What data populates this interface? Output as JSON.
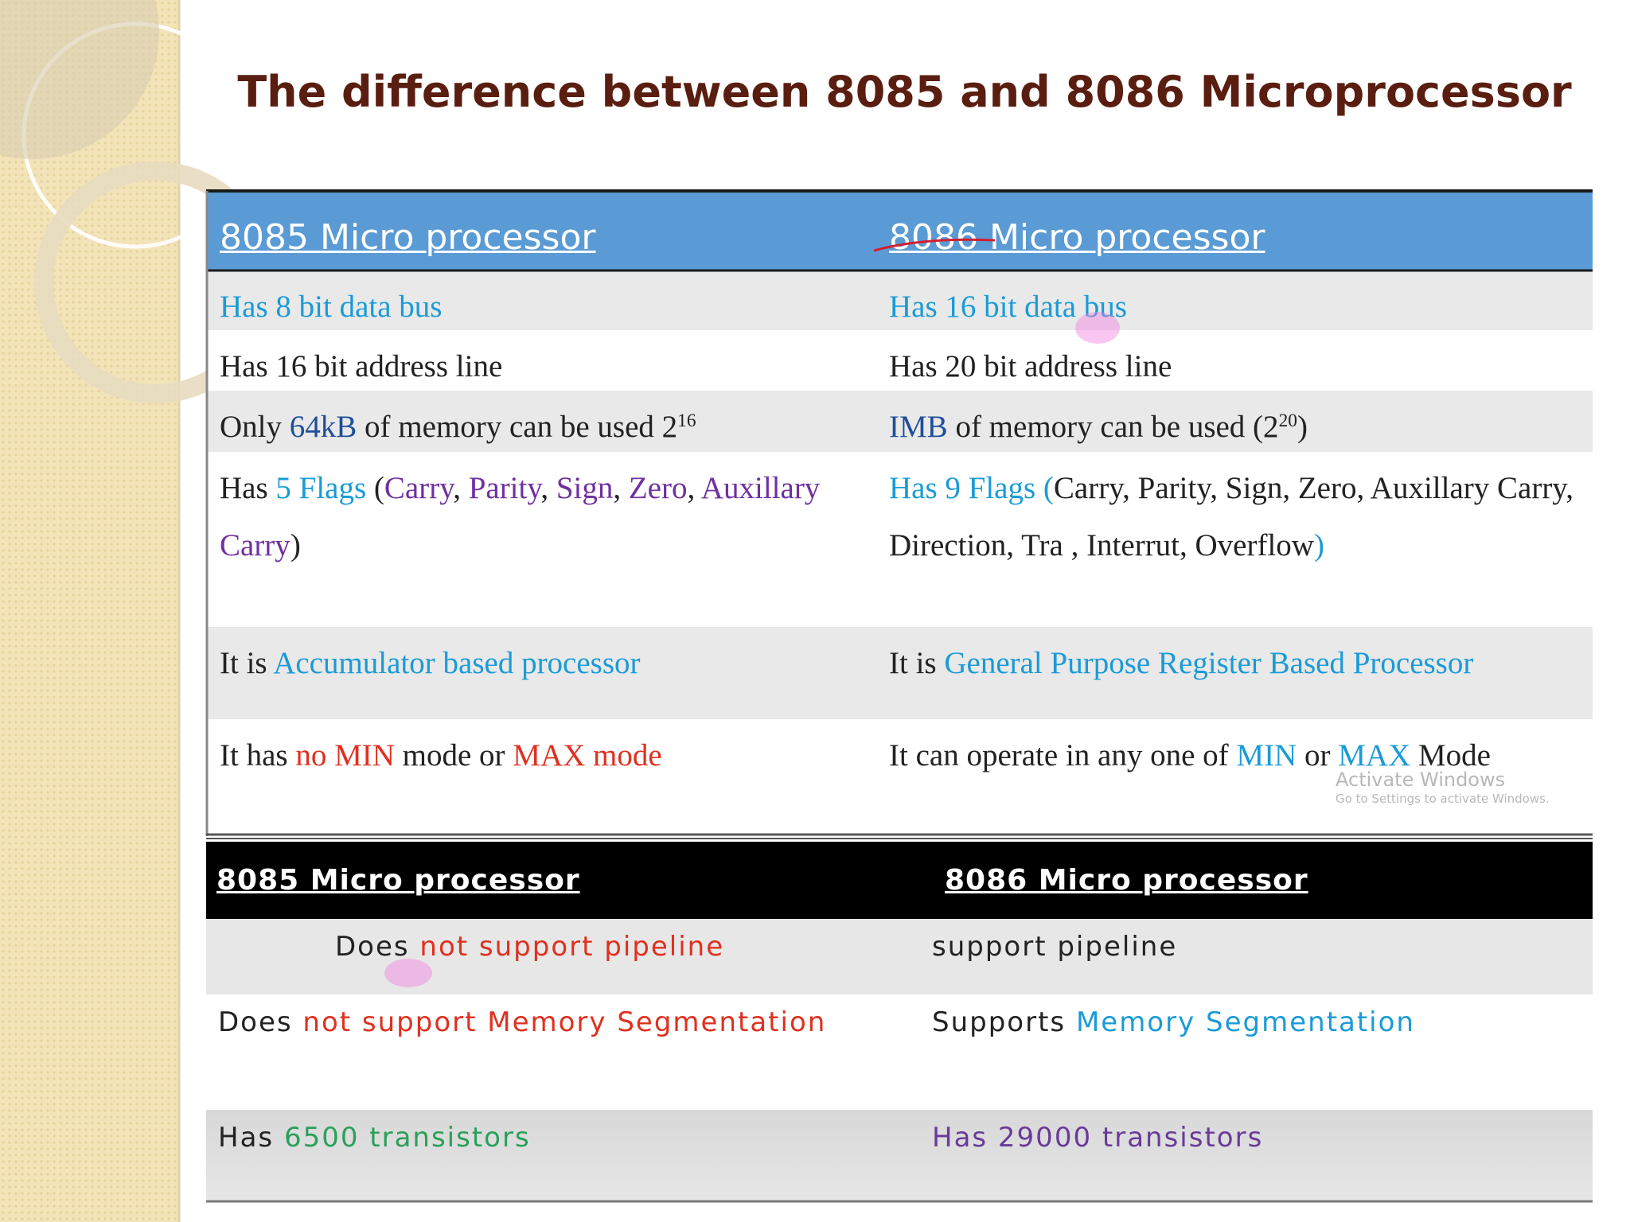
{
  "title": "The difference between 8085 and 8086 Microprocessor",
  "tables": [
    {
      "header": [
        [
          {
            "text": "8085 Micro processor",
            "color": "#ffffff"
          }
        ],
        [
          {
            "text": "8086 Micro processor",
            "color": "#ffffff"
          }
        ]
      ],
      "rows": [
        [
          [
            {
              "text": "Has 8 bit data bus",
              "color": "#1a9bd7"
            }
          ],
          [
            {
              "text": "Has 16 bit data bus",
              "color": "#1a9bd7"
            }
          ]
        ],
        [
          [
            {
              "text": "Has 16 bit address line",
              "color": "#222222"
            }
          ],
          [
            {
              "text": "Has 20 bit address line",
              "color": "#222222"
            }
          ]
        ],
        [
          [
            {
              "text": "Only ",
              "color": "#222222"
            },
            {
              "text": "64kB",
              "color": "#1f4e9a"
            },
            {
              "text": " of memory can be used 2",
              "color": "#222222"
            },
            {
              "text": "16",
              "color": "#222222",
              "superscript": true
            }
          ],
          [
            {
              "text": "IMB",
              "color": "#1f4e9a"
            },
            {
              "text": " of memory can be used (2",
              "color": "#222222"
            },
            {
              "text": "20",
              "color": "#222222",
              "superscript": true
            },
            {
              "text": ")",
              "color": "#222222"
            }
          ]
        ],
        [
          [
            {
              "text": "Has ",
              "color": "#222222"
            },
            {
              "text": "5 Flags",
              "color": "#1a9bd7"
            },
            {
              "text": " (",
              "color": "#222222"
            },
            {
              "text": "Carry",
              "color": "#7030a0"
            },
            {
              "text": ", ",
              "color": "#222222"
            },
            {
              "text": "Parity",
              "color": "#7030a0"
            },
            {
              "text": ", ",
              "color": "#222222"
            },
            {
              "text": "Sign",
              "color": "#7030a0"
            },
            {
              "text": ", ",
              "color": "#222222"
            },
            {
              "text": "Zero",
              "color": "#7030a0"
            },
            {
              "text": ", ",
              "color": "#222222"
            },
            {
              "text": "Auxillary Carry",
              "color": "#7030a0"
            },
            {
              "text": ")",
              "color": "#222222"
            }
          ],
          [
            {
              "text": "Has 9 Flags (",
              "color": "#1a9bd7"
            },
            {
              "text": "Carry, Parity, Sign, Zero, Auxillary Carry, Direction, Tra , Interrut, Overflow",
              "color": "#222222"
            },
            {
              "text": ")",
              "color": "#1a9bd7"
            }
          ]
        ],
        [
          [
            {
              "text": "It is ",
              "color": "#222222"
            },
            {
              "text": "Accumulator based processor",
              "color": "#1a9bd7"
            }
          ],
          [
            {
              "text": "It is ",
              "color": "#222222"
            },
            {
              "text": "General Purpose Register Based Processor",
              "color": "#1a9bd7"
            }
          ]
        ],
        [
          [
            {
              "text": "It has ",
              "color": "#222222"
            },
            {
              "text": "no MIN",
              "color": "#e03020"
            },
            {
              "text": " mode or ",
              "color": "#222222"
            },
            {
              "text": "MAX mode",
              "color": "#e03020"
            }
          ],
          [
            {
              "text": "It can operate in any one of ",
              "color": "#222222"
            },
            {
              "text": "MIN",
              "color": "#1a9bd7"
            },
            {
              "text": " or ",
              "color": "#222222"
            },
            {
              "text": "MAX",
              "color": "#1a9bd7"
            },
            {
              "text": " Mode",
              "color": "#222222"
            }
          ]
        ]
      ]
    },
    {
      "header": [
        [
          {
            "text": "8085 Micro processor",
            "color": "#ffffff"
          }
        ],
        [
          {
            "text": "8086 Micro processor",
            "color": "#ffffff"
          }
        ]
      ],
      "rows": [
        [
          [
            {
              "text": "Does ",
              "color": "#222222"
            },
            {
              "text": "not support pipeline",
              "color": "#e03020"
            }
          ],
          [
            {
              "text": "support pipeline",
              "color": "#222222"
            }
          ]
        ],
        [
          [
            {
              "text": "Does ",
              "color": "#222222"
            },
            {
              "text": "not support Memory Segmentation",
              "color": "#e03020"
            }
          ],
          [
            {
              "text": "Supports ",
              "color": "#222222"
            },
            {
              "text": "Memory Segmentation",
              "color": "#1a9bd7"
            }
          ]
        ],
        [
          [
            {
              "text": "Has ",
              "color": "#222222"
            },
            {
              "text": "6500 transistors",
              "color": "#2aa05a"
            }
          ],
          [
            {
              "text": "Has 29000 transistors",
              "color": "#6a3a9a"
            }
          ]
        ]
      ]
    }
  ],
  "watermark": {
    "title": "Activate Windows",
    "subtitle": "Go to Settings to activate Windows."
  }
}
